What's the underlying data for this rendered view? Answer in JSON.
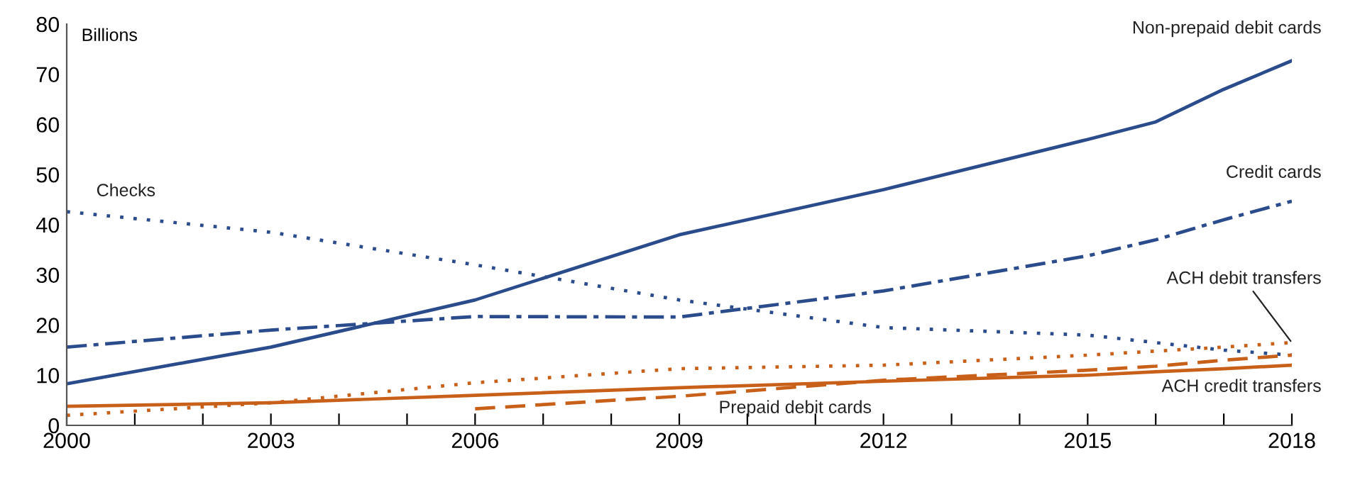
{
  "chart_data": {
    "type": "line",
    "ylabel": "Billions",
    "x": [
      2000,
      2003,
      2006,
      2009,
      2012,
      2015,
      2016,
      2017,
      2018
    ],
    "series": [
      {
        "name": "Non-prepaid debit cards",
        "color": "#2b4c8c",
        "line_style": "solid",
        "values": [
          8.3,
          15.6,
          25,
          38,
          47,
          57,
          60.5,
          67,
          72.7
        ]
      },
      {
        "name": "Credit cards",
        "color": "#2b4c8c",
        "line_style": "dashdot",
        "values": [
          15.6,
          19,
          21.7,
          21.6,
          26.8,
          33.8,
          37,
          41,
          44.7
        ]
      },
      {
        "name": "Checks",
        "color": "#2b4c8c",
        "line_style": "dotted",
        "values": [
          42.6,
          38.5,
          32,
          25,
          19.5,
          18,
          16.5,
          15,
          14
        ]
      },
      {
        "name": "ACH debit transfers",
        "color": "#c8601a",
        "line_style": "dotted",
        "values": [
          2,
          4.5,
          8.5,
          11.3,
          12,
          14,
          14.8,
          15.6,
          16.5
        ]
      },
      {
        "name": "ACH credit transfers",
        "color": "#c8601a",
        "line_style": "solid",
        "values": [
          3.8,
          4.5,
          6,
          7.5,
          8.8,
          10,
          10.7,
          11.3,
          12
        ]
      },
      {
        "name": "Prepaid debit cards",
        "color": "#c8601a",
        "line_style": "dashed",
        "values": [
          null,
          null,
          3.3,
          5.8,
          9,
          11,
          11.8,
          13,
          14
        ]
      }
    ],
    "xlim": [
      2000,
      2018
    ],
    "ylim": [
      0,
      80
    ],
    "xticks": [
      2000,
      {
        "value": 2001,
        "label": null
      },
      {
        "value": 2002,
        "label": null
      },
      2003,
      {
        "value": 2004,
        "label": null
      },
      {
        "value": 2005,
        "label": null
      },
      2006,
      {
        "value": 2007,
        "label": null
      },
      {
        "value": 2008,
        "label": null
      },
      2009,
      {
        "value": 2010,
        "label": null
      },
      {
        "value": 2011,
        "label": null
      },
      2012,
      {
        "value": 2013,
        "label": null
      },
      {
        "value": 2014,
        "label": null
      },
      2015,
      {
        "value": 2016,
        "label": null
      },
      {
        "value": 2017,
        "label": null
      },
      2018
    ],
    "yticks": [
      0,
      10,
      20,
      30,
      40,
      50,
      60,
      70,
      80
    ],
    "grid": false,
    "legend": false,
    "marker": "none"
  }
}
